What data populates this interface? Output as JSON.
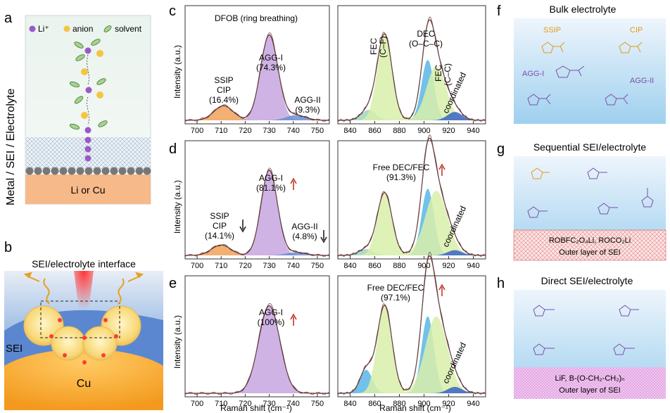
{
  "panel_letters": {
    "a": "a",
    "b": "b",
    "c": "c",
    "d": "d",
    "e": "e",
    "f": "f",
    "g": "g",
    "h": "h"
  },
  "panel_a": {
    "legend": {
      "li": "Li⁺",
      "anion": "anion",
      "solvent": "solvent"
    },
    "side_label": "Metal / SEI / Electrolyte",
    "substrate": "Li or Cu"
  },
  "panel_b": {
    "title": "SEI/electrolyte interface",
    "sei": "SEI",
    "cu": "Cu"
  },
  "raman": {
    "ylabel": "Intensity (a.u.)",
    "xlabel": "Raman shift (cm⁻¹)",
    "left_ticks": [
      "700",
      "710",
      "720",
      "730",
      "740",
      "750"
    ],
    "right_ticks": [
      "840",
      "860",
      "880",
      "900",
      "920",
      "940"
    ],
    "c": {
      "title": "DFOB (ring breathing)",
      "ssip": "SSIP",
      "cip": "CIP",
      "ssip_pct": "(16.4%)",
      "aggI": "AGG-I",
      "aggI_pct": "(74.3%)",
      "aggII": "AGG-II",
      "aggII_pct": "(9.3%)",
      "fec": "FEC",
      "fec_cf": "(C–F)",
      "dec": "DEC",
      "dec_occ": "(O–C–C)",
      "fec2": "FEC",
      "fec_cc": "(C–C)",
      "coord": "coordinated"
    },
    "d": {
      "ssip": "SSIP",
      "cip": "CIP",
      "ssip_pct": "(14.1%)",
      "aggI": "AGG-I",
      "aggI_pct": "(81.1%)",
      "aggII": "AGG-II",
      "aggII_pct": "(4.8%)",
      "free": "Free DEC/FEC",
      "free_pct": "(91.3%)",
      "coord": "coordinated"
    },
    "e": {
      "aggI": "AGG-I",
      "aggI_pct": "(100%)",
      "free": "Free DEC/FEC",
      "free_pct": "(97.1%)",
      "coord": "coordinated"
    }
  },
  "panel_f": {
    "title": "Bulk electrolyte",
    "ssip": "SSIP",
    "cip": "CIP",
    "aggI": "AGG-I",
    "aggII": "AGG-II"
  },
  "panel_g": {
    "title": "Sequential SEI/electrolyte",
    "layer1": "ROBFC₂O₄Li, ROCO₂Li",
    "layer2": "Outer layer of SEI"
  },
  "panel_h": {
    "title": "Direct SEI/electrolyte",
    "layer1": "LiF, B-(O-CH₂-CH₂)ₙ",
    "layer2": "Outer layer of SEI"
  }
}
